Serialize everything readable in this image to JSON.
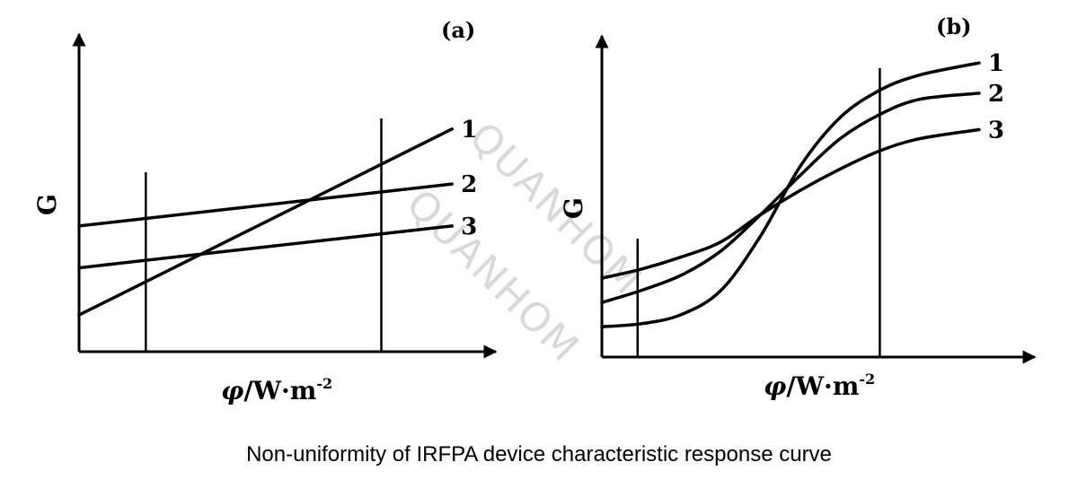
{
  "caption": "Non-uniformity of IRFPA device characteristic response curve",
  "watermark": "QUANHOM",
  "chart_data": [
    {
      "type": "line",
      "panel_label": "(a)",
      "ylabel": "G",
      "xlabel_symbol": "φ",
      "xlabel_unit": "/W·m",
      "xlabel_exp": "-2",
      "xlim": [
        0,
        100
      ],
      "ylim": [
        0,
        100
      ],
      "guide_x": [
        17,
        77
      ],
      "series": [
        {
          "name": "1",
          "x": [
            0,
            95
          ],
          "y": [
            14,
            85
          ]
        },
        {
          "name": "2",
          "x": [
            0,
            95
          ],
          "y": [
            48,
            64
          ]
        },
        {
          "name": "3",
          "x": [
            0,
            95
          ],
          "y": [
            32,
            48
          ]
        }
      ]
    },
    {
      "type": "line",
      "panel_label": "(b)",
      "ylabel": "G",
      "xlabel_symbol": "φ",
      "xlabel_unit": "/W·m",
      "xlabel_exp": "-2",
      "xlim": [
        0,
        100
      ],
      "ylim": [
        0,
        100
      ],
      "guide_x": [
        9,
        70
      ],
      "series": [
        {
          "name": "1",
          "x": [
            0,
            10,
            20,
            30,
            40,
            50,
            60,
            70,
            80,
            95
          ],
          "y": [
            10,
            11,
            14,
            22,
            40,
            63,
            79,
            88,
            93,
            97
          ]
        },
        {
          "name": "2",
          "x": [
            0,
            10,
            20,
            30,
            40,
            50,
            60,
            70,
            80,
            95
          ],
          "y": [
            18,
            22,
            27,
            35,
            47,
            60,
            72,
            80,
            85,
            87
          ]
        },
        {
          "name": "3",
          "x": [
            0,
            10,
            20,
            30,
            40,
            50,
            60,
            70,
            80,
            95
          ],
          "y": [
            26,
            29,
            33,
            38,
            47,
            55,
            62,
            68,
            72,
            75
          ]
        }
      ]
    }
  ]
}
